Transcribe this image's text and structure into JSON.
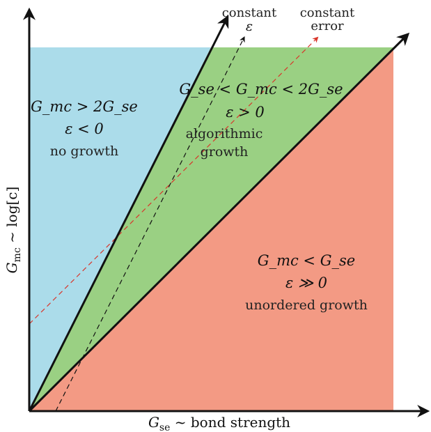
{
  "regions": {
    "blue": {
      "color": "#abdcea",
      "condition": "G_mc > 2G_se",
      "sign": "ε < 0",
      "label": "no growth"
    },
    "green": {
      "color": "#9ad083",
      "condition": "G_se < G_mc < 2G_se",
      "sign": "ε > 0",
      "label_line1": "algorithmic",
      "label_line2": "growth"
    },
    "red": {
      "color": "#f39a84",
      "condition": "G_mc < G_se",
      "sign": "ε ≫ 0",
      "label": "unordered growth"
    }
  },
  "axes": {
    "x_main": "G",
    "x_sub": "se",
    "x_rest": " ~ bond strength",
    "y_main": "G",
    "y_sub": "mc",
    "y_rest": " ~ log[c]"
  },
  "curves": {
    "constant_eps_line1": "constant",
    "constant_eps_line2": "ε",
    "constant_error_line1": "constant",
    "constant_error_line2": "error",
    "error_color": "#d9352a"
  }
}
